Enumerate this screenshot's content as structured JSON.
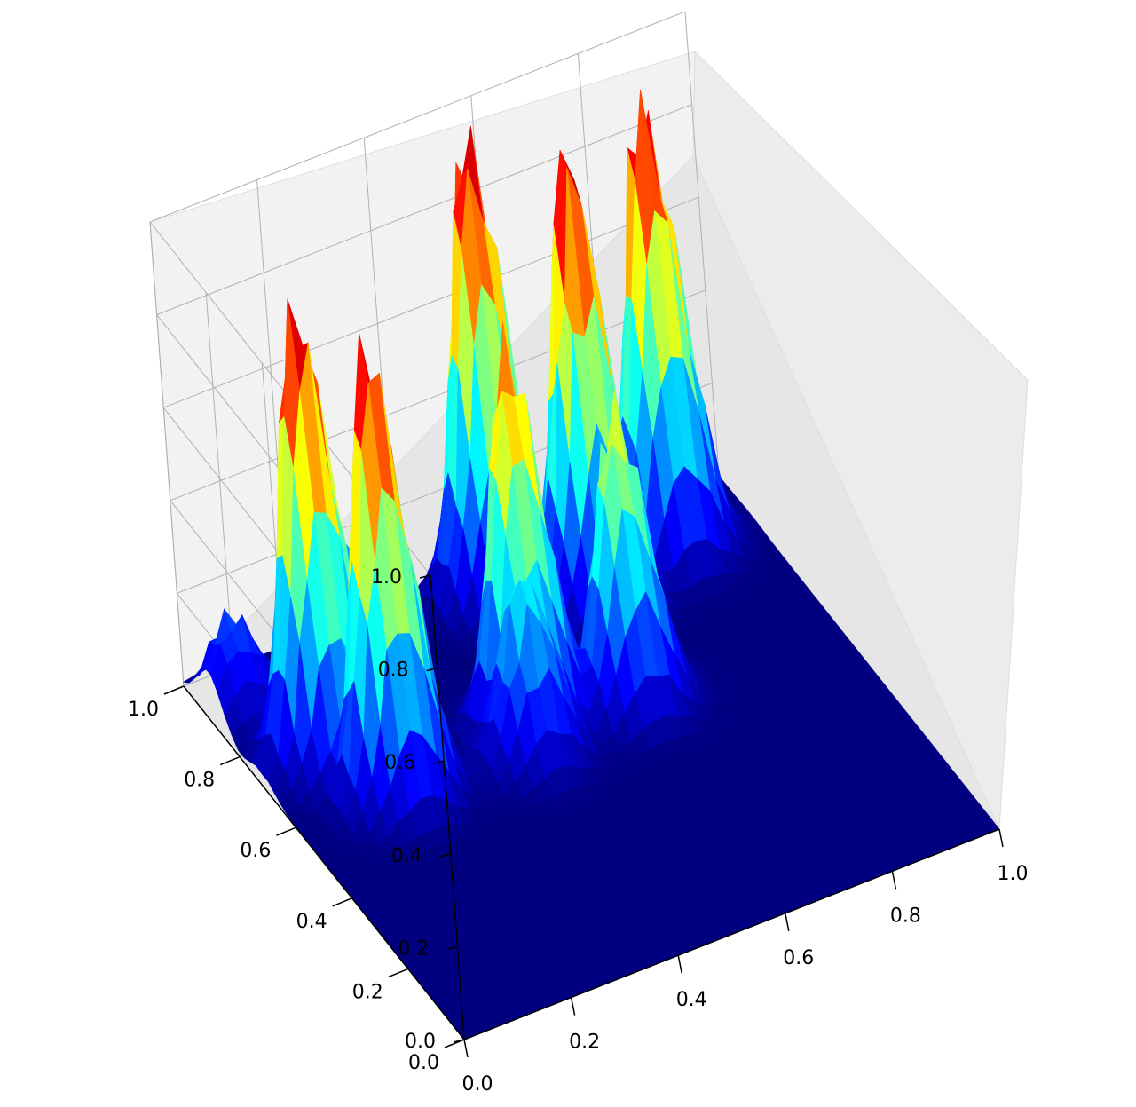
{
  "chart_data": {
    "type": "surface3d",
    "title": "",
    "xlabel": "",
    "ylabel": "",
    "zlabel": "",
    "colormap": "jet",
    "xlim": [
      0,
      1
    ],
    "ylim": [
      0,
      1
    ],
    "zlim": [
      0,
      1
    ],
    "grid": true,
    "x_ticks": [
      "0.0",
      "0.2",
      "0.4",
      "0.6",
      "0.8",
      "1.0"
    ],
    "y_ticks": [
      "0.0",
      "0.2",
      "0.4",
      "0.6",
      "0.8",
      "1.0"
    ],
    "z_ticks": [
      "0.0",
      "0.2",
      "0.4",
      "0.6",
      "0.8",
      "1.0"
    ],
    "peaks": [
      {
        "x": 0.12,
        "y": 0.72,
        "height": 1.0
      },
      {
        "x": 0.18,
        "y": 0.58,
        "height": 0.97
      },
      {
        "x": 0.55,
        "y": 0.93,
        "height": 1.0
      },
      {
        "x": 0.68,
        "y": 0.82,
        "height": 0.98
      },
      {
        "x": 0.85,
        "y": 0.88,
        "height": 0.97
      },
      {
        "x": 0.45,
        "y": 0.62,
        "height": 0.8
      },
      {
        "x": 0.62,
        "y": 0.58,
        "height": 0.62
      },
      {
        "x": 0.42,
        "y": 0.55,
        "height": 0.4
      },
      {
        "x": 0.05,
        "y": 0.9,
        "height": 0.2
      },
      {
        "x": 0.25,
        "y": 0.85,
        "height": 0.3
      }
    ]
  }
}
